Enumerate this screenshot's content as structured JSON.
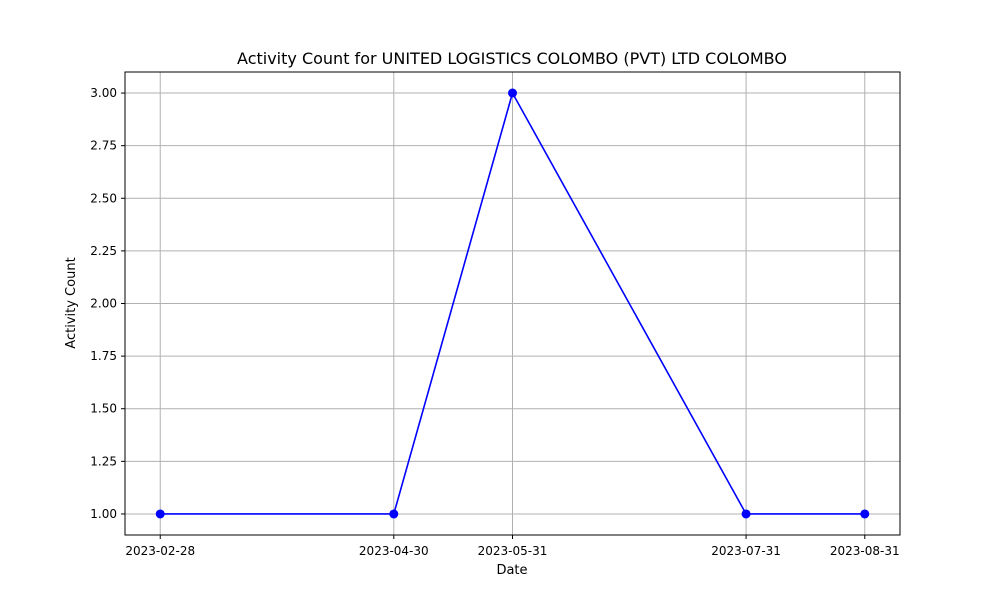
{
  "chart_data": {
    "type": "line",
    "title": "Activity Count for UNITED LOGISTICS COLOMBO (PVT) LTD COLOMBO",
    "xlabel": "Date",
    "ylabel": "Activity Count",
    "categories": [
      "2023-02-28",
      "2023-04-30",
      "2023-05-31",
      "2023-07-31",
      "2023-08-31"
    ],
    "series": [
      {
        "values": [
          1,
          1,
          3,
          1,
          1
        ],
        "color": "#0000ff",
        "marker": "circle"
      }
    ],
    "yticks": [
      "1.00",
      "1.25",
      "1.50",
      "1.75",
      "2.00",
      "2.25",
      "2.50",
      "2.75",
      "3.00"
    ],
    "ylim": [
      0.9,
      3.1
    ],
    "grid": true,
    "legend": "none"
  }
}
